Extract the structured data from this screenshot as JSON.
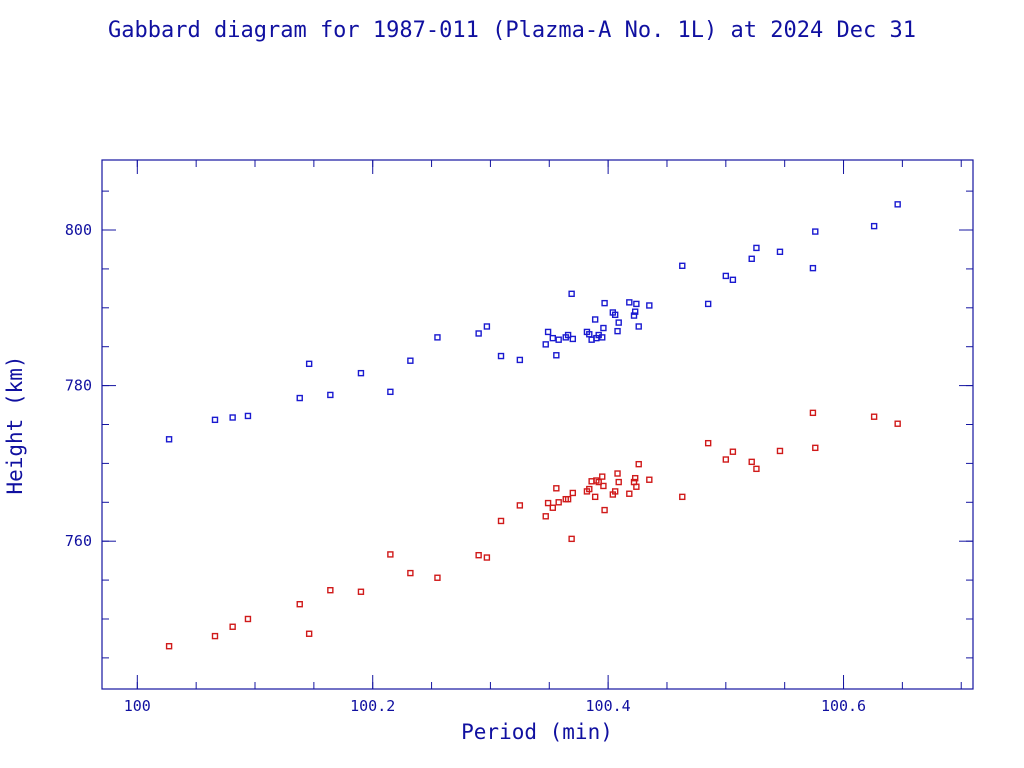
{
  "colors": {
    "text": "#1010a0",
    "axis": "#1414a0",
    "apogee": "#1a1ad0",
    "perigee": "#d01a1a"
  },
  "chart_data": {
    "type": "scatter",
    "title": "Gabbard diagram for 1987-011 (Plazma-A No. 1L) at 2024 Dec 31",
    "xlabel": "Period (min)",
    "ylabel": "Height (km)",
    "xlim": [
      99.97,
      100.71
    ],
    "ylim": [
      741.0,
      809.0
    ],
    "x_ticks": [
      100,
      100.2,
      100.4,
      100.6
    ],
    "x_tick_labels": [
      "100",
      "100.2",
      "100.4",
      "100.6"
    ],
    "y_ticks": [
      760,
      780,
      800
    ],
    "y_tick_labels": [
      "760",
      "780",
      "800"
    ],
    "x_minor_step": 0.05,
    "y_minor_step": 5,
    "grid": false,
    "legend": "none",
    "series": [
      {
        "points": [
          [
            100.027,
            773.1
          ],
          [
            100.066,
            775.6
          ],
          [
            100.081,
            775.9
          ],
          [
            100.094,
            776.1
          ],
          [
            100.138,
            778.4
          ],
          [
            100.146,
            782.8
          ],
          [
            100.164,
            778.8
          ],
          [
            100.19,
            781.6
          ],
          [
            100.215,
            779.2
          ],
          [
            100.232,
            783.2
          ],
          [
            100.255,
            786.2
          ],
          [
            100.29,
            786.7
          ],
          [
            100.297,
            787.6
          ],
          [
            100.309,
            783.8
          ],
          [
            100.325,
            783.3
          ],
          [
            100.347,
            785.3
          ],
          [
            100.349,
            786.9
          ],
          [
            100.353,
            786.1
          ],
          [
            100.356,
            783.9
          ],
          [
            100.358,
            785.9
          ],
          [
            100.364,
            786.2
          ],
          [
            100.366,
            786.5
          ],
          [
            100.369,
            791.8
          ],
          [
            100.37,
            786.0
          ],
          [
            100.382,
            786.9
          ],
          [
            100.384,
            786.6
          ],
          [
            100.386,
            785.9
          ],
          [
            100.389,
            788.5
          ],
          [
            100.39,
            786.1
          ],
          [
            100.392,
            786.5
          ],
          [
            100.395,
            786.2
          ],
          [
            100.396,
            787.4
          ],
          [
            100.397,
            790.6
          ],
          [
            100.404,
            789.4
          ],
          [
            100.406,
            789.1
          ],
          [
            100.408,
            787.0
          ],
          [
            100.409,
            788.1
          ],
          [
            100.418,
            790.7
          ],
          [
            100.422,
            789.0
          ],
          [
            100.423,
            789.5
          ],
          [
            100.424,
            790.5
          ],
          [
            100.426,
            787.6
          ],
          [
            100.435,
            790.3
          ],
          [
            100.463,
            795.4
          ],
          [
            100.485,
            790.5
          ],
          [
            100.5,
            794.1
          ],
          [
            100.506,
            793.6
          ],
          [
            100.522,
            796.3
          ],
          [
            100.526,
            797.7
          ],
          [
            100.546,
            797.2
          ],
          [
            100.574,
            795.1
          ],
          [
            100.576,
            799.8
          ],
          [
            100.626,
            800.5
          ],
          [
            100.646,
            803.3
          ]
        ]
      },
      {
        "points": [
          [
            100.027,
            746.5
          ],
          [
            100.066,
            747.8
          ],
          [
            100.081,
            749.0
          ],
          [
            100.094,
            750.0
          ],
          [
            100.138,
            751.9
          ],
          [
            100.146,
            748.1
          ],
          [
            100.164,
            753.7
          ],
          [
            100.19,
            753.5
          ],
          [
            100.215,
            758.3
          ],
          [
            100.232,
            755.9
          ],
          [
            100.255,
            755.3
          ],
          [
            100.29,
            758.2
          ],
          [
            100.297,
            757.9
          ],
          [
            100.309,
            762.6
          ],
          [
            100.325,
            764.6
          ],
          [
            100.347,
            763.2
          ],
          [
            100.349,
            764.9
          ],
          [
            100.353,
            764.3
          ],
          [
            100.356,
            766.8
          ],
          [
            100.358,
            765.0
          ],
          [
            100.364,
            765.4
          ],
          [
            100.366,
            765.4
          ],
          [
            100.369,
            760.3
          ],
          [
            100.37,
            766.2
          ],
          [
            100.382,
            766.4
          ],
          [
            100.384,
            766.7
          ],
          [
            100.386,
            767.7
          ],
          [
            100.389,
            765.7
          ],
          [
            100.39,
            767.8
          ],
          [
            100.392,
            767.6
          ],
          [
            100.395,
            768.3
          ],
          [
            100.396,
            767.1
          ],
          [
            100.397,
            764.0
          ],
          [
            100.404,
            766.0
          ],
          [
            100.406,
            766.4
          ],
          [
            100.408,
            768.7
          ],
          [
            100.409,
            767.6
          ],
          [
            100.418,
            766.1
          ],
          [
            100.422,
            767.6
          ],
          [
            100.423,
            768.1
          ],
          [
            100.424,
            767.0
          ],
          [
            100.426,
            769.9
          ],
          [
            100.435,
            767.9
          ],
          [
            100.463,
            765.7
          ],
          [
            100.485,
            772.6
          ],
          [
            100.5,
            770.5
          ],
          [
            100.506,
            771.5
          ],
          [
            100.522,
            770.2
          ],
          [
            100.526,
            769.3
          ],
          [
            100.546,
            771.6
          ],
          [
            100.574,
            776.5
          ],
          [
            100.576,
            772.0
          ],
          [
            100.626,
            776.0
          ],
          [
            100.646,
            775.1
          ]
        ]
      }
    ]
  }
}
